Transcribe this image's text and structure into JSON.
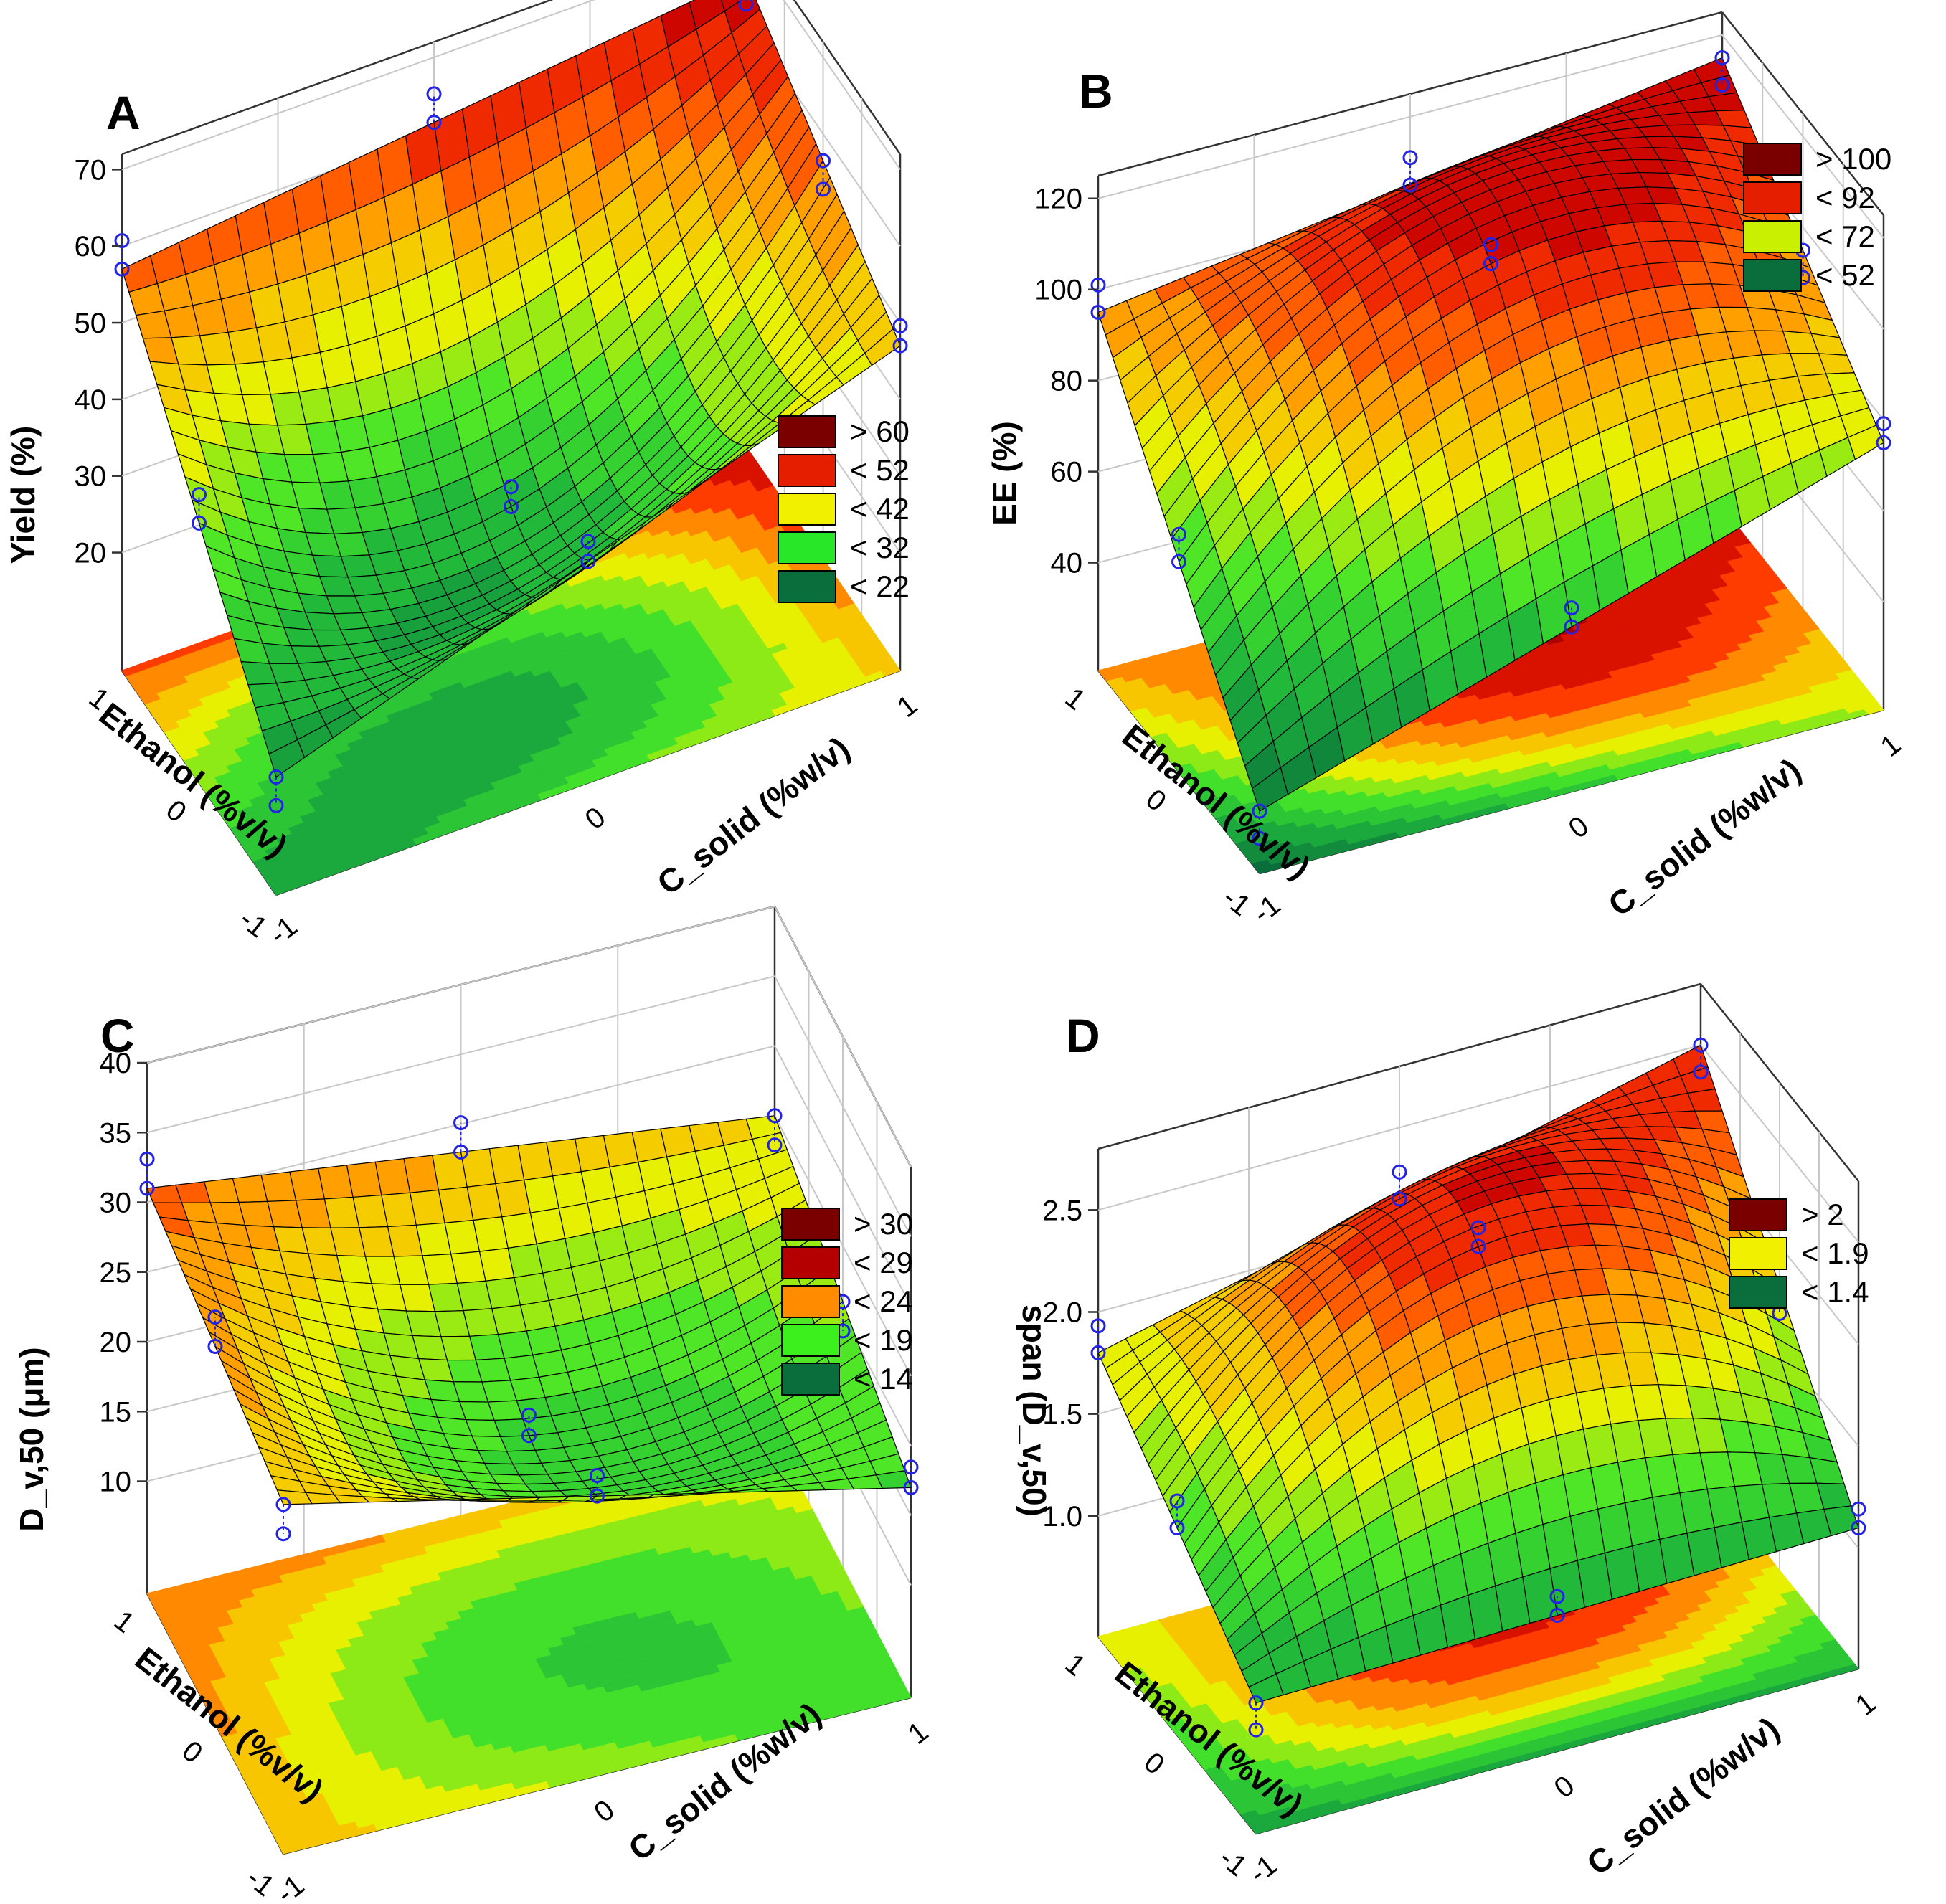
{
  "chart_data": [
    {
      "type": "surface3d",
      "panel": "A",
      "title": "",
      "xlabel": "C_solid (%w/v)",
      "ylabel": "Ethanol (%v/v)",
      "zlabel": "Yield (%)",
      "x_ticks": [
        "-1",
        "0",
        "1"
      ],
      "y_ticks": [
        "-1",
        "0",
        "1"
      ],
      "z_ticks": [
        "20",
        "30",
        "40",
        "50",
        "60",
        "70"
      ],
      "zlim": [
        10,
        72
      ],
      "surface_corners": {
        "x-1_y-1": 20,
        "x1_y-1": 47,
        "x-1_y1": 57,
        "x1_y1": 66,
        "center": 26
      },
      "legend": [
        {
          "label": "> 60",
          "color": "#7a0000"
        },
        {
          "label": "< 52",
          "color": "#e61e00"
        },
        {
          "label": "< 42",
          "color": "#f0f000"
        },
        {
          "label": "< 32",
          "color": "#28e628"
        },
        {
          "label": "< 22",
          "color": "#0a6e3c"
        }
      ]
    },
    {
      "type": "surface3d",
      "panel": "B",
      "title": "",
      "xlabel": "C_solid (%w/v)",
      "ylabel": "Ethanol (%v/v)",
      "zlabel": "EE (%)",
      "x_ticks": [
        "-1",
        "0",
        "1"
      ],
      "y_ticks": [
        "-1",
        "0",
        "1"
      ],
      "z_ticks": [
        "40",
        "60",
        "80",
        "100",
        "120"
      ],
      "zlim": [
        25,
        125
      ],
      "surface_corners": {
        "x-1_y-1": 30,
        "x1_y-1": 75,
        "x-1_y1": 95,
        "x1_y1": 115,
        "center": 110
      },
      "legend": [
        {
          "label": "> 100",
          "color": "#7a0000"
        },
        {
          "label": "< 92",
          "color": "#e61e00"
        },
        {
          "label": "< 72",
          "color": "#c8f000"
        },
        {
          "label": "< 52",
          "color": "#0a6e3c"
        }
      ]
    },
    {
      "type": "surface3d",
      "panel": "C",
      "title": "",
      "xlabel": "C_solid (%w/v)",
      "ylabel": "Ethanol (%v/v)",
      "zlabel": "D_v,50 (μm)",
      "x_ticks": [
        "-1",
        "0",
        "1"
      ],
      "y_ticks": [
        "-1",
        "0",
        "1"
      ],
      "z_ticks": [
        "10",
        "15",
        "20",
        "25",
        "30",
        "35",
        "40"
      ],
      "zlim": [
        5,
        40
      ],
      "surface_corners": {
        "x-1_y-1": 27,
        "x1_y-1": 17,
        "x-1_y1": 31,
        "x1_y1": 25,
        "center": 17
      },
      "legend": [
        {
          "label": "> 30",
          "color": "#7a0000"
        },
        {
          "label": "< 29",
          "color": "#b40000"
        },
        {
          "label": "< 24",
          "color": "#ff8c00"
        },
        {
          "label": "< 19",
          "color": "#3cf01e"
        },
        {
          "label": "< 14",
          "color": "#0a6e3c"
        }
      ]
    },
    {
      "type": "surface3d",
      "panel": "D",
      "title": "",
      "xlabel": "C_solid (%w/v)",
      "ylabel": "Ethanol (%v/v)",
      "zlabel": "span (D_v,50)",
      "x_ticks": [
        "-1",
        "0",
        "1"
      ],
      "y_ticks": [
        "-1",
        "0",
        "1"
      ],
      "z_ticks": [
        "1.0",
        "1.5",
        "2.0",
        "2.5"
      ],
      "zlim": [
        0.6,
        2.8
      ],
      "surface_corners": {
        "x-1_y-1": 1.05,
        "x1_y-1": 1.1,
        "x-1_y1": 1.8,
        "x1_y1": 2.5,
        "center": 2.4
      },
      "legend": [
        {
          "label": "> 2",
          "color": "#7a0000"
        },
        {
          "label": "< 1.9",
          "color": "#f0f000"
        },
        {
          "label": "< 1.4",
          "color": "#0a6e3c"
        }
      ]
    }
  ]
}
